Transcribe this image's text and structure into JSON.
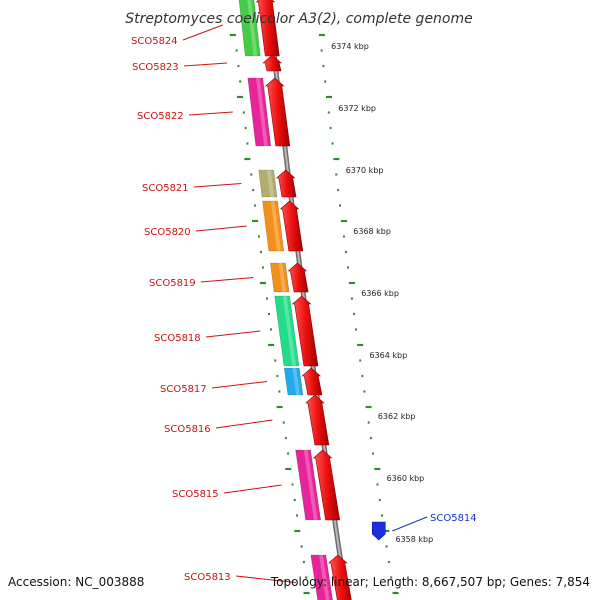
{
  "title": "Streptomyces coelicolor A3(2), complete genome",
  "footer": {
    "accession": "Accession: NC_003888",
    "summary": "Topology: linear; Length: 8,667,507 bp; Genes: 7,854"
  },
  "colors": {
    "backbone": "#8c8c8c",
    "tick": "#2e8b2e",
    "cds_arrow": "#ee1111",
    "label_forward": "#cc1111",
    "label_reverse": "#1133cc"
  },
  "scale_labels": [
    "6374 kbp",
    "6372 kbp",
    "6370 kbp",
    "6368 kbp",
    "6366 kbp",
    "6364 kbp",
    "6362 kbp",
    "6360 kbp",
    "6358 kbp"
  ],
  "genes": [
    {
      "label": "SCO5824",
      "cog_color": "#44cc44",
      "strand": "forward"
    },
    {
      "label": "SCO5823",
      "cog_color": "",
      "strand": "forward"
    },
    {
      "label": "SCO5822",
      "cog_color": "#e8249a",
      "strand": "forward"
    },
    {
      "label": "SCO5821",
      "cog_color": "#b3ad6e",
      "strand": "forward"
    },
    {
      "label": "SCO5820",
      "cog_color": "#f39019",
      "strand": "forward"
    },
    {
      "label": "SCO5819",
      "cog_color": "#f39019",
      "strand": "forward"
    },
    {
      "label": "SCO5818",
      "cog_color": "#22dd88",
      "strand": "forward"
    },
    {
      "label": "SCO5817",
      "cog_color": "#22aaee",
      "strand": "forward"
    },
    {
      "label": "SCO5816",
      "cog_color": "",
      "strand": "forward"
    },
    {
      "label": "SCO5815",
      "cog_color": "#e8249a",
      "strand": "forward"
    },
    {
      "label": "SCO5814",
      "cog_color": "#1a2ee0",
      "strand": "reverse"
    },
    {
      "label": "SCO5813",
      "cog_color": "#e8249a",
      "strand": "forward"
    }
  ]
}
